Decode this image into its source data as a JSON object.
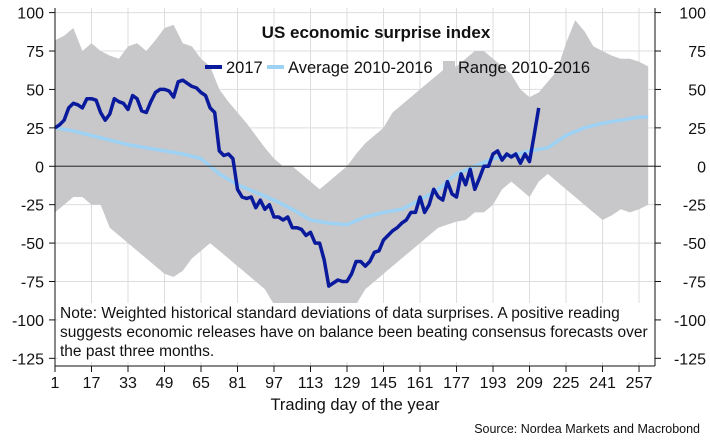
{
  "chart_data": {
    "type": "line",
    "title": "US economic surprise index",
    "xlabel": "Trading day of the year",
    "ylabel": "",
    "xlim": [
      1,
      264
    ],
    "ylim": [
      -130,
      103
    ],
    "x_ticks": [
      1,
      17,
      33,
      49,
      65,
      81,
      97,
      113,
      129,
      145,
      161,
      177,
      193,
      209,
      225,
      241,
      257
    ],
    "y_ticks": [
      100,
      75,
      50,
      25,
      0,
      -25,
      -50,
      -75,
      -100,
      -125
    ],
    "grid": true,
    "legend_position": "top",
    "colors": {
      "y2017": "#0a1a9c",
      "average": "#9dd2f4",
      "range": "#c8c7c9",
      "zero_line": "#444444"
    },
    "series": [
      {
        "name": "2017",
        "x": [
          1,
          3,
          5,
          7,
          9,
          11,
          13,
          15,
          17,
          19,
          21,
          23,
          25,
          27,
          29,
          31,
          33,
          35,
          37,
          39,
          41,
          43,
          45,
          47,
          49,
          51,
          53,
          55,
          57,
          59,
          61,
          63,
          65,
          67,
          69,
          71,
          73,
          75,
          77,
          79,
          81,
          83,
          85,
          87,
          89,
          91,
          93,
          95,
          97,
          99,
          101,
          103,
          105,
          107,
          109,
          111,
          113,
          115,
          117,
          119,
          121,
          123,
          125,
          127,
          129,
          131,
          133,
          135,
          137,
          139,
          141,
          143,
          145,
          147,
          149,
          151,
          153,
          155,
          157,
          159,
          161,
          163,
          165,
          167,
          169,
          171,
          173,
          175,
          177,
          179,
          181,
          183,
          185,
          187,
          189,
          191,
          193,
          195,
          197,
          199,
          201,
          203,
          205,
          207,
          209,
          211,
          213
        ],
        "values": [
          25,
          27,
          30,
          38,
          41,
          40,
          38,
          44,
          44,
          43,
          35,
          30,
          34,
          44,
          42,
          41,
          37,
          46,
          44,
          36,
          35,
          42,
          48,
          50,
          50,
          49,
          45,
          55,
          56,
          54,
          52,
          51,
          48,
          46,
          38,
          35,
          10,
          7,
          8,
          5,
          -15,
          -20,
          -21,
          -20,
          -27,
          -22,
          -28,
          -25,
          -33,
          -33,
          -35,
          -33,
          -40,
          -40,
          -41,
          -45,
          -43,
          -50,
          -50,
          -61,
          -78,
          -76,
          -74,
          -75,
          -75,
          -70,
          -62,
          -62,
          -65,
          -62,
          -56,
          -55,
          -48,
          -45,
          -42,
          -40,
          -37,
          -35,
          -30,
          -30,
          -20,
          -30,
          -25,
          -15,
          -20,
          -22,
          -10,
          -18,
          -20,
          -5,
          -12,
          -2,
          -15,
          -8,
          0,
          0,
          8,
          10,
          4,
          8,
          6,
          8,
          2,
          8,
          3,
          20,
          38
        ]
      },
      {
        "name": "Average 2010-2016",
        "x": [
          1,
          9,
          17,
          25,
          33,
          41,
          49,
          57,
          65,
          73,
          81,
          89,
          97,
          105,
          113,
          121,
          129,
          137,
          145,
          153,
          161,
          169,
          177,
          185,
          193,
          201,
          209,
          217,
          225,
          233,
          241,
          249,
          257,
          261
        ],
        "values": [
          25,
          23,
          20,
          17,
          14,
          12,
          10,
          8,
          5,
          -5,
          -12,
          -17,
          -22,
          -28,
          -35,
          -37,
          -38,
          -33,
          -30,
          -28,
          -22,
          -15,
          -5,
          0,
          5,
          7,
          10,
          12,
          20,
          25,
          28,
          30,
          32,
          32
        ]
      },
      {
        "name": "Range 2010-2016",
        "x": [
          1,
          5,
          9,
          13,
          17,
          21,
          25,
          29,
          33,
          37,
          41,
          45,
          49,
          53,
          57,
          61,
          65,
          69,
          73,
          77,
          81,
          85,
          89,
          93,
          97,
          101,
          105,
          109,
          113,
          117,
          121,
          125,
          129,
          133,
          137,
          141,
          145,
          149,
          153,
          157,
          161,
          165,
          169,
          173,
          177,
          181,
          185,
          189,
          193,
          197,
          201,
          205,
          209,
          213,
          217,
          221,
          225,
          229,
          233,
          237,
          241,
          245,
          249,
          253,
          257,
          261
        ],
        "upper": [
          82,
          85,
          90,
          75,
          80,
          75,
          72,
          70,
          78,
          80,
          75,
          82,
          90,
          92,
          80,
          78,
          70,
          65,
          50,
          42,
          35,
          28,
          20,
          12,
          5,
          0,
          0,
          -5,
          -10,
          -15,
          -10,
          -5,
          0,
          8,
          15,
          20,
          25,
          35,
          40,
          45,
          50,
          55,
          60,
          65,
          65,
          70,
          75,
          75,
          70,
          65,
          60,
          50,
          45,
          48,
          55,
          62,
          80,
          95,
          88,
          78,
          75,
          72,
          70,
          70,
          68,
          65
        ],
        "lower": [
          -30,
          -25,
          -20,
          -20,
          -25,
          -25,
          -40,
          -45,
          -50,
          -55,
          -60,
          -65,
          -70,
          -72,
          -68,
          -60,
          -55,
          -50,
          -55,
          -60,
          -65,
          -70,
          -75,
          -80,
          -90,
          -100,
          -110,
          -115,
          -110,
          -105,
          -100,
          -100,
          -95,
          -90,
          -80,
          -75,
          -70,
          -65,
          -60,
          -55,
          -50,
          -45,
          -40,
          -38,
          -36,
          -35,
          -30,
          -30,
          -25,
          -15,
          -10,
          -15,
          -20,
          -10,
          -5,
          -10,
          -15,
          -20,
          -25,
          -30,
          -35,
          -32,
          -28,
          -30,
          -28,
          -25
        ]
      }
    ],
    "annotation": "Note: Weighted historical standard deviations of data surprises. A positive reading suggests economic releases have on balance been beating consensus forecasts over the past three months.",
    "source": "Source: Nordea Markets and Macrobond"
  }
}
